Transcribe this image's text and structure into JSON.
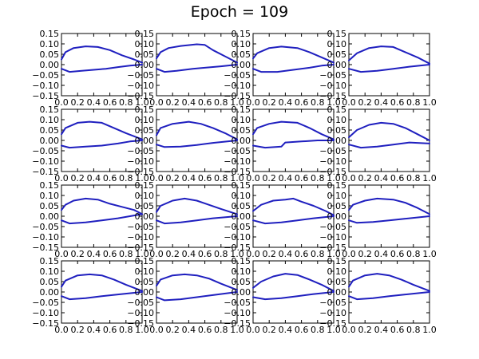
{
  "figure": {
    "title": "Epoch = 109"
  },
  "colors": {
    "line": "#1f1fbf",
    "axes": "#000000",
    "background": "#ffffff"
  },
  "chart_data": {
    "type": "line",
    "title": "Epoch = 109",
    "grid": false,
    "layout": "4x4 grid of small line plots (airfoil-like closed curves)",
    "xlim": [
      0.0,
      1.0
    ],
    "ylim": [
      -0.15,
      0.15
    ],
    "xticks": [
      0.0,
      0.2,
      0.4,
      0.6,
      0.8,
      1.0
    ],
    "yticks": [
      0.15,
      0.1,
      0.05,
      0.0,
      -0.05,
      -0.1,
      -0.15
    ],
    "xtick_labels": [
      "0.0",
      "0.2",
      "0.4",
      "0.6",
      "0.8",
      "1.0"
    ],
    "ytick_labels": [
      "0.15",
      "0.10",
      "0.05",
      "0.00",
      "−0.05",
      "−0.10",
      "−0.15"
    ],
    "panels": [
      {
        "upper": [
          [
            0,
            0.025
          ],
          [
            0.05,
            0.06
          ],
          [
            0.15,
            0.08
          ],
          [
            0.3,
            0.088
          ],
          [
            0.45,
            0.085
          ],
          [
            0.6,
            0.07
          ],
          [
            0.75,
            0.045
          ],
          [
            0.9,
            0.025
          ],
          [
            1.0,
            0.01
          ]
        ],
        "lower": [
          [
            0,
            -0.02
          ],
          [
            0.1,
            -0.035
          ],
          [
            0.25,
            -0.03
          ],
          [
            0.4,
            -0.025
          ],
          [
            0.55,
            -0.02
          ],
          [
            0.7,
            -0.012
          ],
          [
            0.85,
            -0.005
          ],
          [
            1.0,
            0.0
          ]
        ]
      },
      {
        "upper": [
          [
            0,
            0.03
          ],
          [
            0.05,
            0.06
          ],
          [
            0.15,
            0.08
          ],
          [
            0.3,
            0.09
          ],
          [
            0.5,
            0.098
          ],
          [
            0.6,
            0.095
          ],
          [
            0.7,
            0.07
          ],
          [
            0.85,
            0.04
          ],
          [
            1.0,
            0.01
          ]
        ],
        "lower": [
          [
            0,
            -0.02
          ],
          [
            0.1,
            -0.035
          ],
          [
            0.25,
            -0.03
          ],
          [
            0.45,
            -0.02
          ],
          [
            0.6,
            -0.015
          ],
          [
            0.8,
            -0.008
          ],
          [
            1.0,
            0.0
          ]
        ]
      },
      {
        "upper": [
          [
            0,
            0.03
          ],
          [
            0.05,
            0.055
          ],
          [
            0.2,
            0.08
          ],
          [
            0.35,
            0.087
          ],
          [
            0.55,
            0.08
          ],
          [
            0.7,
            0.06
          ],
          [
            0.85,
            0.035
          ],
          [
            1.0,
            0.01
          ]
        ],
        "lower": [
          [
            0,
            -0.02
          ],
          [
            0.1,
            -0.035
          ],
          [
            0.3,
            -0.035
          ],
          [
            0.5,
            -0.025
          ],
          [
            0.7,
            -0.015
          ],
          [
            0.85,
            -0.005
          ],
          [
            1.0,
            0.0
          ]
        ]
      },
      {
        "upper": [
          [
            0,
            0.02
          ],
          [
            0.1,
            0.055
          ],
          [
            0.25,
            0.08
          ],
          [
            0.4,
            0.088
          ],
          [
            0.55,
            0.085
          ],
          [
            0.7,
            0.06
          ],
          [
            0.85,
            0.035
          ],
          [
            1.0,
            0.005
          ]
        ],
        "lower": [
          [
            0,
            -0.02
          ],
          [
            0.15,
            -0.035
          ],
          [
            0.35,
            -0.03
          ],
          [
            0.55,
            -0.02
          ],
          [
            0.75,
            -0.01
          ],
          [
            1.0,
            0.0
          ]
        ]
      },
      {
        "upper": [
          [
            0,
            0.03
          ],
          [
            0.05,
            0.06
          ],
          [
            0.2,
            0.085
          ],
          [
            0.35,
            0.09
          ],
          [
            0.5,
            0.085
          ],
          [
            0.65,
            0.06
          ],
          [
            0.8,
            0.035
          ],
          [
            1.0,
            0.005
          ]
        ],
        "lower": [
          [
            0,
            -0.025
          ],
          [
            0.1,
            -0.035
          ],
          [
            0.3,
            -0.03
          ],
          [
            0.5,
            -0.025
          ],
          [
            0.7,
            -0.015
          ],
          [
            0.85,
            -0.005
          ],
          [
            1.0,
            0.0
          ]
        ]
      },
      {
        "upper": [
          [
            0,
            0.025
          ],
          [
            0.05,
            0.06
          ],
          [
            0.2,
            0.08
          ],
          [
            0.4,
            0.09
          ],
          [
            0.55,
            0.08
          ],
          [
            0.7,
            0.06
          ],
          [
            0.85,
            0.035
          ],
          [
            1.0,
            0.005
          ]
        ],
        "lower": [
          [
            0,
            -0.02
          ],
          [
            0.1,
            -0.032
          ],
          [
            0.3,
            -0.03
          ],
          [
            0.5,
            -0.022
          ],
          [
            0.7,
            -0.012
          ],
          [
            1.0,
            0.0
          ]
        ]
      },
      {
        "upper": [
          [
            0,
            0.03
          ],
          [
            0.05,
            0.06
          ],
          [
            0.2,
            0.08
          ],
          [
            0.35,
            0.09
          ],
          [
            0.55,
            0.085
          ],
          [
            0.7,
            0.06
          ],
          [
            0.85,
            0.03
          ],
          [
            1.0,
            0.005
          ]
        ],
        "lower": [
          [
            0,
            -0.025
          ],
          [
            0.15,
            -0.035
          ],
          [
            0.35,
            -0.03
          ],
          [
            0.4,
            -0.01
          ],
          [
            0.6,
            -0.005
          ],
          [
            0.8,
            0.0
          ],
          [
            1.0,
            0.0
          ]
        ]
      },
      {
        "upper": [
          [
            0,
            0.015
          ],
          [
            0.1,
            0.05
          ],
          [
            0.25,
            0.075
          ],
          [
            0.4,
            0.085
          ],
          [
            0.55,
            0.08
          ],
          [
            0.7,
            0.06
          ],
          [
            0.85,
            0.03
          ],
          [
            1.0,
            0.0
          ]
        ],
        "lower": [
          [
            0,
            -0.02
          ],
          [
            0.15,
            -0.035
          ],
          [
            0.35,
            -0.03
          ],
          [
            0.55,
            -0.02
          ],
          [
            0.75,
            -0.01
          ],
          [
            1.0,
            -0.015
          ]
        ]
      },
      {
        "upper": [
          [
            0,
            0.03
          ],
          [
            0.05,
            0.055
          ],
          [
            0.15,
            0.075
          ],
          [
            0.3,
            0.085
          ],
          [
            0.45,
            0.08
          ],
          [
            0.6,
            0.06
          ],
          [
            0.75,
            0.045
          ],
          [
            0.9,
            0.03
          ],
          [
            1.0,
            0.01
          ]
        ],
        "lower": [
          [
            0,
            -0.02
          ],
          [
            0.1,
            -0.035
          ],
          [
            0.3,
            -0.03
          ],
          [
            0.5,
            -0.02
          ],
          [
            0.7,
            -0.01
          ],
          [
            0.85,
            0.0
          ],
          [
            1.0,
            0.01
          ]
        ]
      },
      {
        "upper": [
          [
            0,
            0.02
          ],
          [
            0.05,
            0.05
          ],
          [
            0.2,
            0.075
          ],
          [
            0.35,
            0.085
          ],
          [
            0.5,
            0.075
          ],
          [
            0.65,
            0.055
          ],
          [
            0.8,
            0.035
          ],
          [
            1.0,
            0.01
          ]
        ],
        "lower": [
          [
            0,
            -0.02
          ],
          [
            0.1,
            -0.035
          ],
          [
            0.3,
            -0.03
          ],
          [
            0.5,
            -0.02
          ],
          [
            0.7,
            -0.01
          ],
          [
            1.0,
            0.0
          ]
        ]
      },
      {
        "upper": [
          [
            0,
            0.025
          ],
          [
            0.1,
            0.055
          ],
          [
            0.25,
            0.075
          ],
          [
            0.4,
            0.08
          ],
          [
            0.5,
            0.085
          ],
          [
            0.6,
            0.07
          ],
          [
            0.75,
            0.05
          ],
          [
            0.9,
            0.025
          ],
          [
            1.0,
            0.005
          ]
        ],
        "lower": [
          [
            0,
            -0.02
          ],
          [
            0.15,
            -0.035
          ],
          [
            0.35,
            -0.03
          ],
          [
            0.55,
            -0.02
          ],
          [
            0.75,
            -0.01
          ],
          [
            1.0,
            0.0
          ]
        ]
      },
      {
        "upper": [
          [
            0,
            0.03
          ],
          [
            0.05,
            0.055
          ],
          [
            0.2,
            0.075
          ],
          [
            0.35,
            0.085
          ],
          [
            0.55,
            0.08
          ],
          [
            0.7,
            0.065
          ],
          [
            0.85,
            0.04
          ],
          [
            1.0,
            0.01
          ]
        ],
        "lower": [
          [
            0,
            -0.02
          ],
          [
            0.1,
            -0.032
          ],
          [
            0.3,
            -0.028
          ],
          [
            0.5,
            -0.02
          ],
          [
            0.7,
            -0.012
          ],
          [
            1.0,
            0.0
          ]
        ]
      },
      {
        "upper": [
          [
            0,
            0.025
          ],
          [
            0.05,
            0.055
          ],
          [
            0.2,
            0.08
          ],
          [
            0.35,
            0.085
          ],
          [
            0.5,
            0.08
          ],
          [
            0.65,
            0.06
          ],
          [
            0.8,
            0.035
          ],
          [
            1.0,
            0.005
          ]
        ],
        "lower": [
          [
            0,
            -0.02
          ],
          [
            0.1,
            -0.035
          ],
          [
            0.3,
            -0.03
          ],
          [
            0.5,
            -0.02
          ],
          [
            0.7,
            -0.012
          ],
          [
            1.0,
            0.0
          ]
        ]
      },
      {
        "upper": [
          [
            0,
            0.03
          ],
          [
            0.05,
            0.06
          ],
          [
            0.2,
            0.08
          ],
          [
            0.35,
            0.085
          ],
          [
            0.5,
            0.08
          ],
          [
            0.65,
            0.065
          ],
          [
            0.8,
            0.04
          ],
          [
            1.0,
            0.01
          ]
        ],
        "lower": [
          [
            0,
            -0.025
          ],
          [
            0.1,
            -0.04
          ],
          [
            0.3,
            -0.035
          ],
          [
            0.5,
            -0.025
          ],
          [
            0.7,
            -0.015
          ],
          [
            1.0,
            0.0
          ]
        ]
      },
      {
        "upper": [
          [
            0,
            0.02
          ],
          [
            0.1,
            0.05
          ],
          [
            0.25,
            0.075
          ],
          [
            0.4,
            0.088
          ],
          [
            0.55,
            0.082
          ],
          [
            0.7,
            0.06
          ],
          [
            0.85,
            0.035
          ],
          [
            1.0,
            0.005
          ]
        ],
        "lower": [
          [
            0,
            -0.025
          ],
          [
            0.15,
            -0.035
          ],
          [
            0.35,
            -0.03
          ],
          [
            0.55,
            -0.02
          ],
          [
            0.75,
            -0.01
          ],
          [
            1.0,
            0.0
          ]
        ]
      },
      {
        "upper": [
          [
            0,
            0.025
          ],
          [
            0.05,
            0.055
          ],
          [
            0.2,
            0.08
          ],
          [
            0.35,
            0.088
          ],
          [
            0.5,
            0.08
          ],
          [
            0.65,
            0.06
          ],
          [
            0.8,
            0.035
          ],
          [
            1.0,
            0.005
          ]
        ],
        "lower": [
          [
            0,
            -0.02
          ],
          [
            0.1,
            -0.035
          ],
          [
            0.3,
            -0.03
          ],
          [
            0.5,
            -0.02
          ],
          [
            0.7,
            -0.012
          ],
          [
            1.0,
            0.0
          ]
        ]
      }
    ]
  }
}
